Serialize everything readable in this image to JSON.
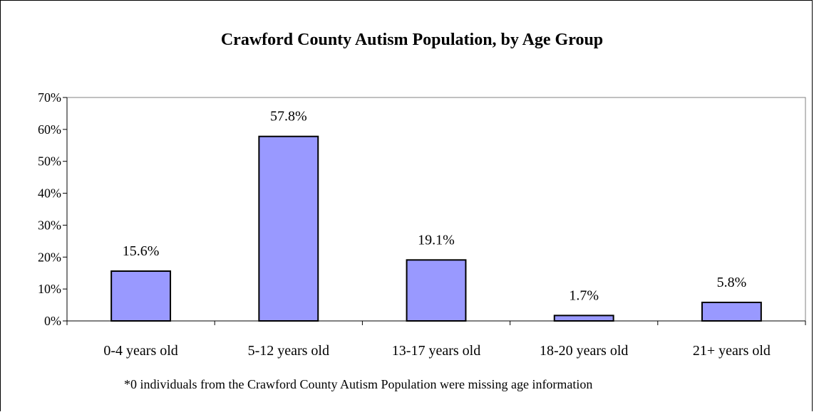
{
  "chart_data": {
    "type": "bar",
    "title": "Crawford County Autism Population, by Age Group",
    "categories": [
      "0-4 years old",
      "5-12 years old",
      "13-17 years old",
      "18-20 years old",
      "21+ years old"
    ],
    "values": [
      15.6,
      57.8,
      19.1,
      1.7,
      5.8
    ],
    "data_labels": [
      "15.6%",
      "57.8%",
      "19.1%",
      "1.7%",
      "5.8%"
    ],
    "ylim": [
      0,
      70
    ],
    "yticks": [
      0,
      10,
      20,
      30,
      40,
      50,
      60,
      70
    ],
    "ytick_labels": [
      "0%",
      "10%",
      "20%",
      "30%",
      "40%",
      "50%",
      "60%",
      "70%"
    ],
    "xlabel": "",
    "ylabel": "",
    "grid": false,
    "bar_color": "#9999FF",
    "legend": "none"
  },
  "footnote": "*0 individuals from the Crawford County Autism Population were missing age information"
}
